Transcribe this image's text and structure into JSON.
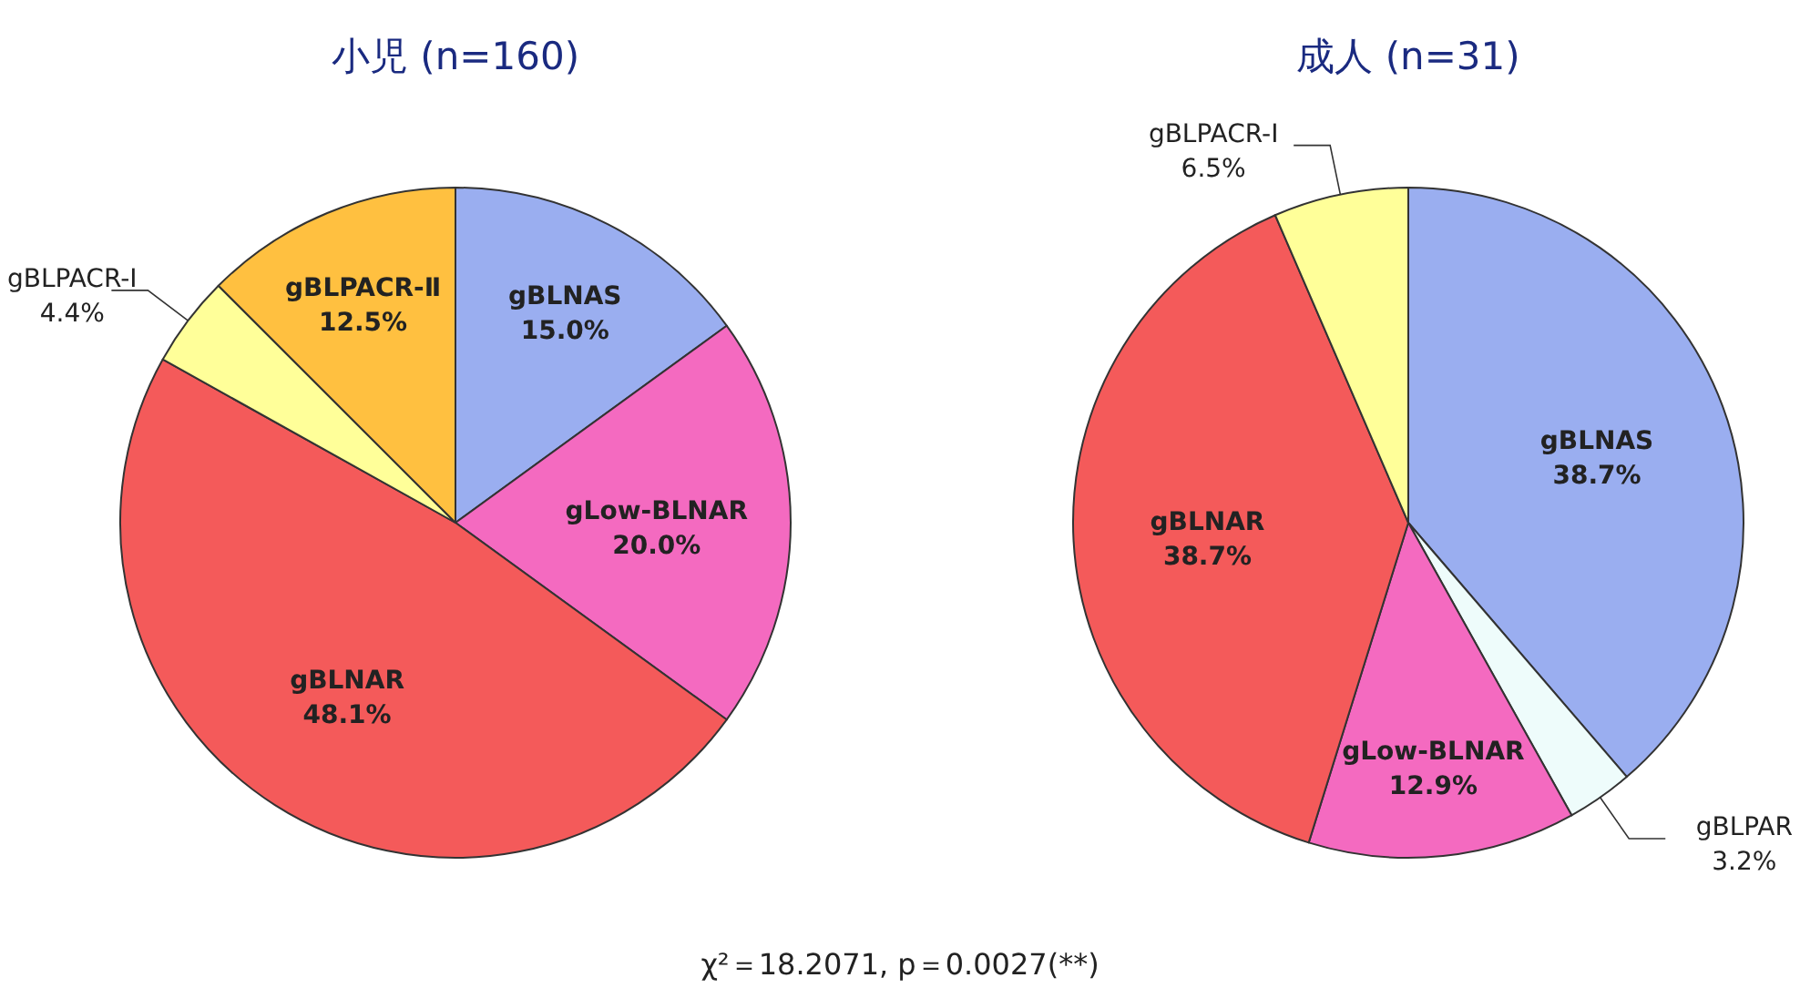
{
  "chart_data": [
    {
      "type": "pie",
      "title": "小児 (n=160)",
      "categories": [
        "gBLNAS",
        "gLow-BLNAR",
        "gBLNAR",
        "gBLPACR-Ⅰ",
        "gBLPACR-Ⅱ"
      ],
      "values": [
        15.0,
        20.0,
        48.1,
        4.4,
        12.5
      ],
      "value_labels": [
        "15.0%",
        "20.0%",
        "48.1%",
        "4.4%",
        "12.5%"
      ],
      "colors": [
        "#9aaef0",
        "#f46ac0",
        "#f45a5a",
        "#ffff99",
        "#ffc040"
      ]
    },
    {
      "type": "pie",
      "title": "成人 (n=31)",
      "categories": [
        "gBLNAS",
        "gBLPAR",
        "gLow-BLNAR",
        "gBLNAR",
        "gBLPACR-Ⅰ"
      ],
      "values": [
        38.7,
        3.2,
        12.9,
        38.7,
        6.5
      ],
      "value_labels": [
        "38.7%",
        "3.2%",
        "12.9%",
        "38.7%",
        "6.5%"
      ],
      "colors": [
        "#9aaef0",
        "#eefcfb",
        "#f46ac0",
        "#f45a5a",
        "#ffff99"
      ],
      "annotations": [
        "χ²＝18.2071, p＝0.0027(**)"
      ]
    }
  ]
}
